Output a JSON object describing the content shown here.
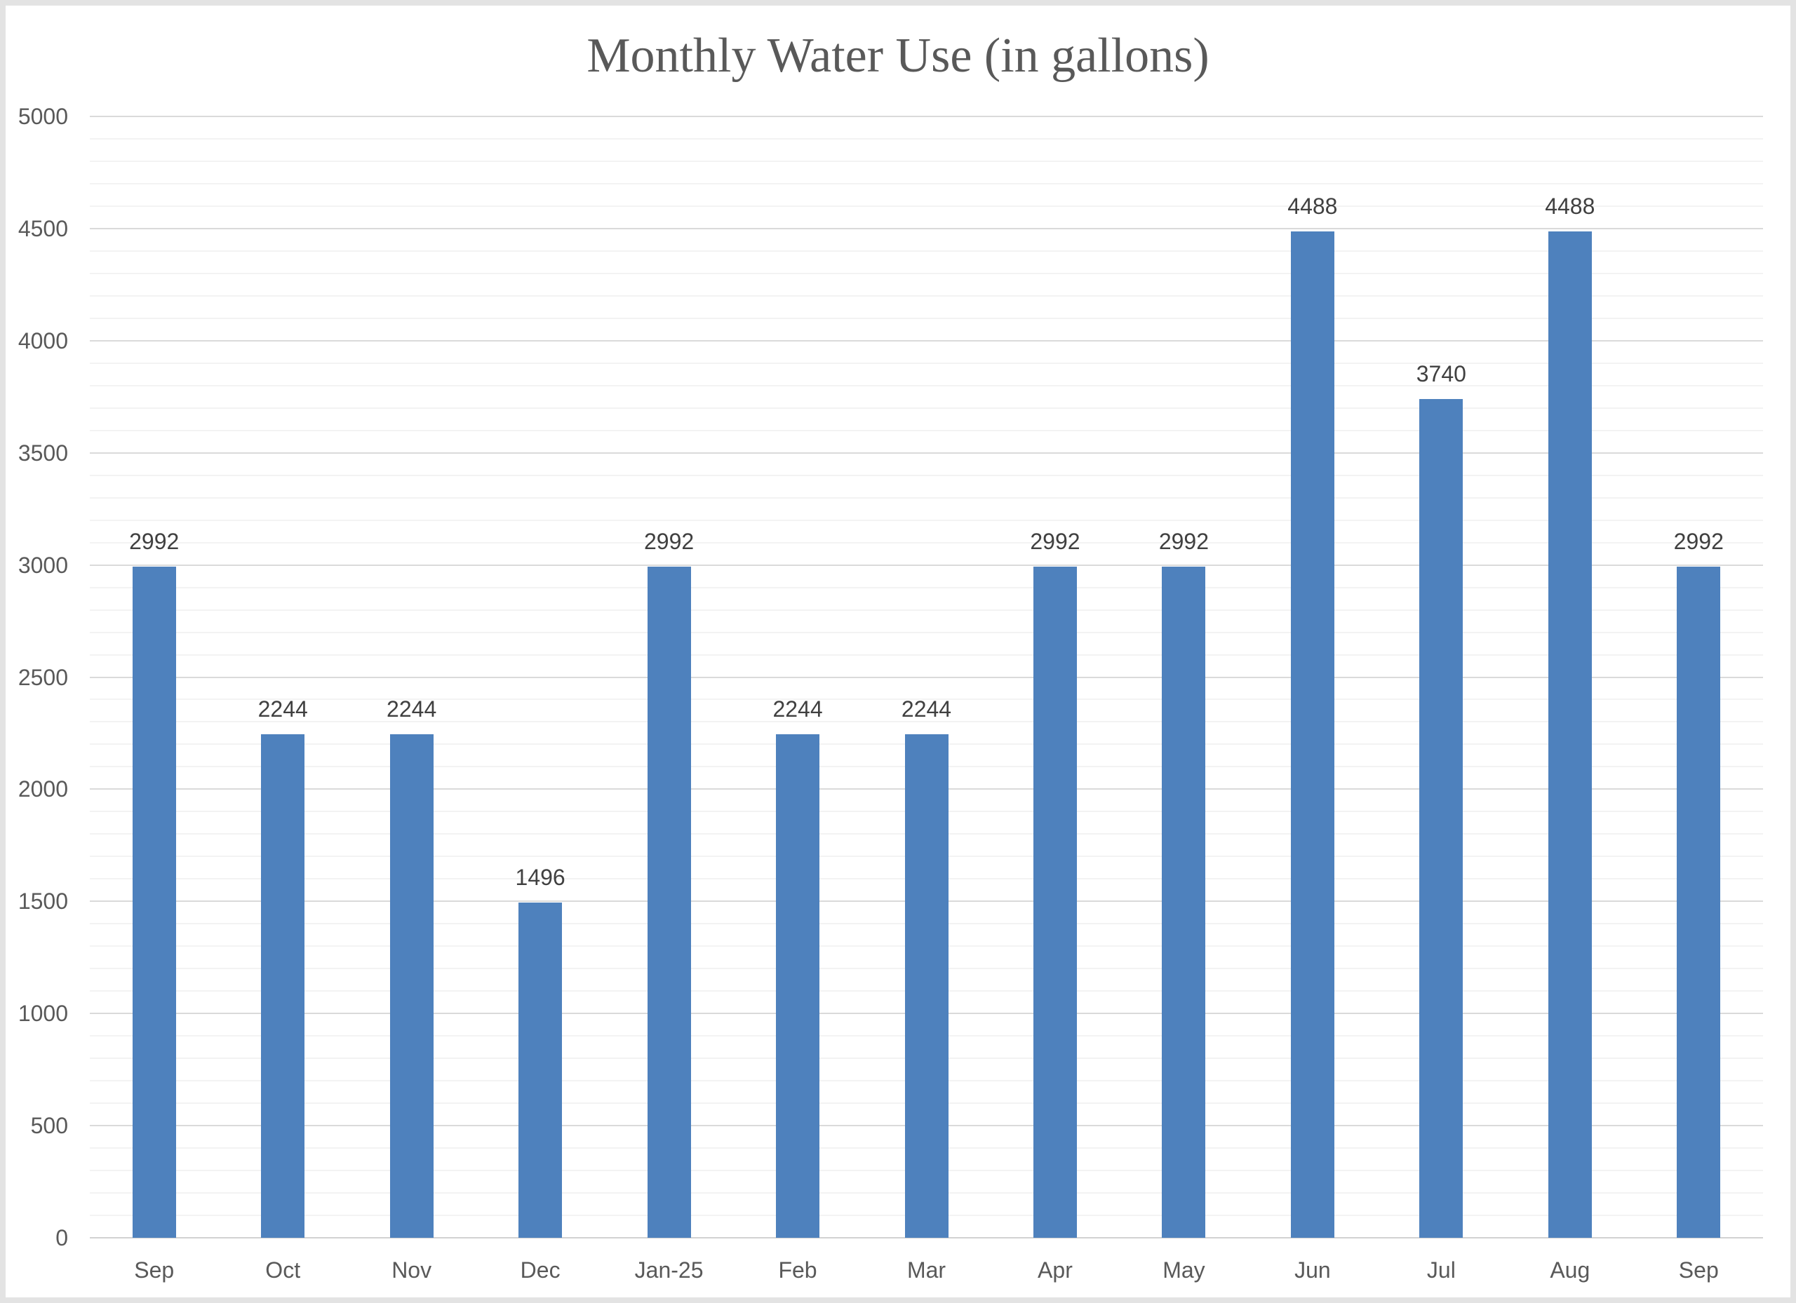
{
  "chart_data": {
    "type": "bar",
    "title": "Monthly Water Use (in gallons)",
    "categories": [
      "Sep",
      "Oct",
      "Nov",
      "Dec",
      "Jan-25",
      "Feb",
      "Mar",
      "Apr",
      "May",
      "Jun",
      "Jul",
      "Aug",
      "Sep"
    ],
    "values": [
      2992,
      2244,
      2244,
      1496,
      2992,
      2244,
      2244,
      2992,
      2992,
      4488,
      3740,
      4488,
      2992
    ],
    "data_labels": [
      "2992",
      "2244",
      "2244",
      "1496",
      "2992",
      "2244",
      "2244",
      "2992",
      "2992",
      "4488",
      "3740",
      "4488",
      "2992"
    ],
    "xlabel": "",
    "ylabel": "",
    "ylim": [
      0,
      5000
    ],
    "y_major_step": 500,
    "y_minor_step": 100,
    "y_tick_labels": [
      "0",
      "500",
      "1000",
      "1500",
      "2000",
      "2500",
      "3000",
      "3500",
      "4000",
      "4500",
      "5000"
    ],
    "grid": "major and minor horizontal gridlines on",
    "legend": "none"
  },
  "style": {
    "bar_color": "#4E81BD",
    "title_color": "#595959",
    "axis_label_color": "#595959",
    "data_label_color": "#404040",
    "major_grid_color": "#DADADA",
    "minor_grid_color": "#F3F3F3",
    "axis_line_color": "#D2D2D2",
    "background": "#FFFFFF",
    "frame_color": "#E3E3E3"
  }
}
